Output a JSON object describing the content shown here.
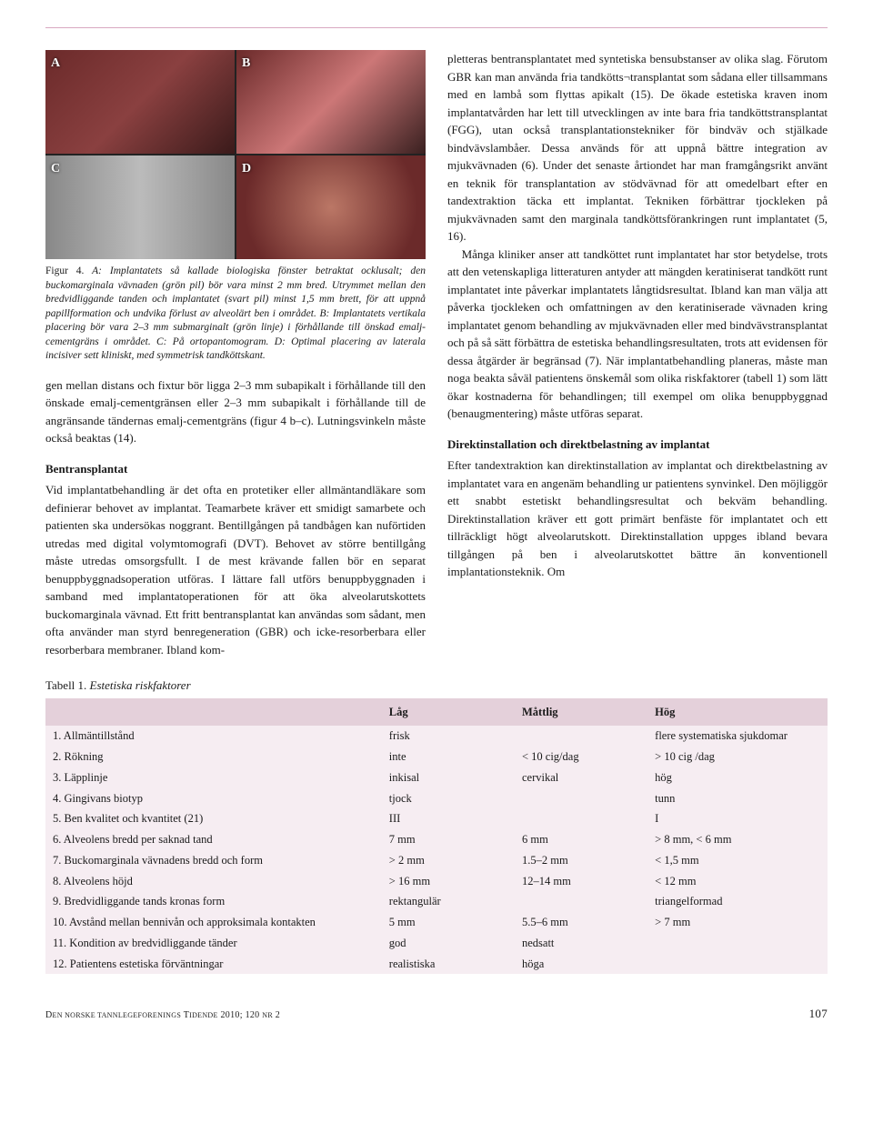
{
  "figure": {
    "lead": "Figur 4.",
    "caption": "A: Implantatets så kallade biologiska fönster betraktat ocklusalt; den buckomarginala vävnaden (grön pil) bör vara minst 2 mm bred. Utrymmet mellan den bredvidliggande tanden och implantatet (svart pil) minst 1,5 mm brett, för att uppnå papillformation och undvika förlust av alveolärt ben i området. B: Implantatets vertikala placering bör vara 2–3 mm submarginalt (grön linje) i förhållande till önskad emalj-cementgräns i området. C: På ortopantomogram. D: Optimal placering av laterala incisiver sett kliniskt, med symmetrisk tandköttskant.",
    "panels": {
      "a": "A",
      "b": "B",
      "c": "C",
      "d": "D"
    }
  },
  "left_paragraphs": [
    "gen mellan distans och fixtur bör ligga 2–3 mm subapikalt i förhållande till den önskade emalj-cementgränsen eller 2–3 mm subapikalt i förhållande till de angränsande tändernas emalj-cementgräns (figur 4 b–c). Lutningsvinkeln måste också beaktas (14)."
  ],
  "left_section_head": "Bentransplantat",
  "left_section_body": [
    "Vid implantatbehandling är det ofta en protetiker eller allmäntandläkare som definierar behovet av implantat. Teamarbete kräver ett smidigt samarbete och patienten ska undersökas noggrant. Bentillgången på tandbågen kan nuförtiden utredas med digital volymtomografi (DVT). Behovet av större bentillgång måste utredas omsorgsfullt. I de mest krävande fallen bör en separat benuppbyggnadsoperation utföras. I lättare fall utförs benuppbyggnaden i samband med implantatoperationen för att öka alveolarutskottets buckomarginala vävnad. Ett fritt bentransplantat kan användas som sådant, men ofta använder man styrd benregeneration (GBR) och icke-resorberbara eller resorberbara membraner. Ibland kom-"
  ],
  "right_paragraphs": [
    "pletteras bentransplantatet med syntetiska bensubstanser av olika slag. Förutom GBR kan man använda fria tandkötts¬transplantat som sådana eller tillsammans med en lambå som flyttas apikalt (15). De ökade estetiska kraven inom implantatvården har lett till utvecklingen av inte bara fria tandköttstransplantat (FGG), utan också transplantationstekniker för bindväv och stjälkade bindvävslambåer. Dessa används för att uppnå bättre integration av mjukvävnaden (6). Under det senaste årtiondet har man framgångsrikt använt en teknik för transplantation av stödvävnad för att omedelbart efter en tandextraktion täcka ett implantat. Tekniken förbättrar tjockleken på mjukvävnaden samt den marginala tandköttsförankringen runt implantatet (5, 16).",
    "Många kliniker anser att tandköttet runt implantatet har stor betydelse, trots att den vetenskapliga litteraturen antyder att mängden keratiniserat tandkött runt implantatet inte påverkar implantatets långtidsresultat. Ibland kan man välja att påverka tjockleken och omfattningen av den keratiniserade vävnaden kring implantatet genom behandling av mjukvävnaden eller med bindvävstransplantat och på så sätt förbättra de estetiska behandlingsresultaten, trots att evidensen för dessa åtgärder är begränsad (7). När implantatbehandling planeras, måste man noga beakta såväl patientens önskemål som olika riskfaktorer (tabell 1) som lätt ökar kostnaderna för behandlingen; till exempel om olika benuppbyggnad (benaugmentering) måste utföras separat."
  ],
  "right_section_head": "Direktinstallation och direktbelastning av implantat",
  "right_section_body": [
    "Efter tandextraktion kan direktinstallation av implantat och direktbelastning av implantatet vara en angenäm behandling ur patientens synvinkel. Den möjliggör ett snabbt estetiskt behandlingsresultat och bekväm behandling. Direktinstallation kräver ett gott primärt benfäste för implantatet och ett tillräckligt högt alveolarutskott. Direktinstallation uppges ibland bevara tillgången på ben i alveolarutskottet bättre än konventionell implantationsteknik. Om"
  ],
  "table": {
    "lead": "Tabell 1.",
    "title": "Estetiska riskfaktorer",
    "columns": [
      "",
      "Låg",
      "Måttlig",
      "Hög"
    ],
    "col_widths": [
      "43%",
      "17%",
      "17%",
      "23%"
    ],
    "header_bg": "#e4d0da",
    "band_bg": "#f2e6ec",
    "rows": [
      [
        "1. Allmäntillstånd",
        "frisk",
        "",
        "flere systematiska sjukdomar"
      ],
      [
        "2. Rökning",
        "inte",
        "< 10 cig/dag",
        "> 10 cig /dag"
      ],
      [
        "3. Läpplinje",
        "inkisal",
        "cervikal",
        "hög"
      ],
      [
        "4. Gingivans biotyp",
        "tjock",
        "",
        "tunn"
      ],
      [
        "5. Ben kvalitet och kvantitet (21)",
        "III",
        "",
        "I"
      ],
      [
        "6. Alveolens bredd per saknad tand",
        "7 mm",
        "6 mm",
        "> 8 mm, < 6 mm"
      ],
      [
        "7. Buckomarginala vävnadens bredd och form",
        "> 2 mm",
        "1.5–2 mm",
        "< 1,5 mm"
      ],
      [
        "8. Alveolens höjd",
        "> 16 mm",
        "12–14 mm",
        "< 12 mm"
      ],
      [
        "9. Bredvidliggande tands kronas form",
        "rektangulär",
        "",
        "triangelformad"
      ],
      [
        "10. Avstånd mellan bennivån och approksimala kontakten",
        "5 mm",
        "5.5–6 mm",
        "> 7 mm"
      ],
      [
        "11. Kondition av bredvidliggande tänder",
        "god",
        "nedsatt",
        ""
      ],
      [
        "12. Patientens estetiska förväntningar",
        "realistiska",
        "höga",
        ""
      ]
    ]
  },
  "footer": {
    "journal": "Den norske tannlegeforenings Tidende 2010; 120 nr 2",
    "page": "107"
  },
  "colors": {
    "rule": "#d8a8c0",
    "header_band": "#e4d0da",
    "row_band": "#f2e6ec",
    "text": "#1a1a1a",
    "background": "#ffffff"
  },
  "fonts": {
    "body_family": "Georgia, Times New Roman, serif",
    "body_size_pt": 10,
    "caption_size_pt": 9,
    "heading_weight": "bold"
  }
}
